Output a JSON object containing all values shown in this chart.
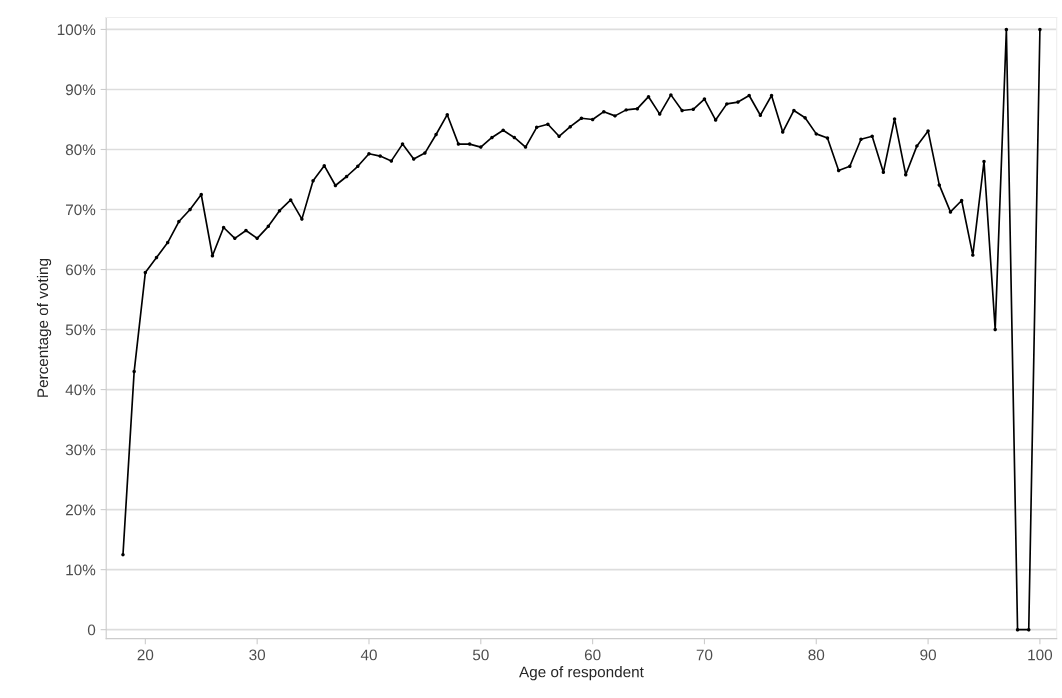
{
  "chart_data": {
    "type": "line",
    "xlabel": "Age of respondent",
    "ylabel": "Percentage of voting",
    "x": [
      18,
      19,
      20,
      21,
      22,
      23,
      24,
      25,
      26,
      27,
      28,
      29,
      30,
      31,
      32,
      33,
      34,
      35,
      36,
      37,
      38,
      39,
      40,
      41,
      42,
      43,
      44,
      45,
      46,
      47,
      48,
      49,
      50,
      51,
      52,
      53,
      54,
      55,
      56,
      57,
      58,
      59,
      60,
      61,
      62,
      63,
      64,
      65,
      66,
      67,
      68,
      69,
      70,
      71,
      72,
      73,
      74,
      75,
      76,
      77,
      78,
      79,
      80,
      81,
      82,
      83,
      84,
      85,
      86,
      87,
      88,
      89,
      90,
      91,
      92,
      93,
      94,
      95,
      96,
      97,
      98,
      99,
      100
    ],
    "series": [
      {
        "color": "#000000",
        "values": [
          12.5,
          43,
          59.5,
          62,
          64.5,
          68,
          70,
          72.5,
          62.3,
          67,
          65.2,
          66.5,
          65.2,
          67.2,
          69.8,
          71.6,
          68.4,
          74.8,
          77.3,
          74,
          75.5,
          77.2,
          79.3,
          78.9,
          78.1,
          80.9,
          78.4,
          79.4,
          82.5,
          85.8,
          80.9,
          80.9,
          80.4,
          82,
          83.2,
          82,
          80.4,
          83.7,
          84.2,
          82.2,
          83.8,
          85.2,
          85,
          86.3,
          85.6,
          86.6,
          86.8,
          88.8,
          85.9,
          89.1,
          86.5,
          86.7,
          88.4,
          84.9,
          87.6,
          87.9,
          89,
          85.7,
          89,
          82.9,
          86.5,
          85.3,
          82.6,
          81.9,
          76.5,
          77.2,
          81.7,
          82.2,
          76.2,
          85.1,
          75.8,
          80.6,
          83.1,
          74.1,
          69.6,
          71.5,
          62.4,
          78,
          50,
          100,
          0,
          0,
          100
        ]
      }
    ],
    "xlim": [
      16.5,
      101.5
    ],
    "xticks": [
      20,
      30,
      40,
      50,
      60,
      70,
      80,
      90,
      100
    ],
    "ylim": [
      -1.5,
      102
    ],
    "yticks": [
      0,
      {
        "value": 10,
        "label": "10%"
      },
      {
        "value": 20,
        "label": "20%"
      },
      {
        "value": 30,
        "label": "30%"
      },
      {
        "value": 40,
        "label": "40%"
      },
      {
        "value": 50,
        "label": "50%"
      },
      {
        "value": 60,
        "label": "60%"
      },
      {
        "value": 70,
        "label": "70%"
      },
      {
        "value": 80,
        "label": "80%"
      },
      {
        "value": 90,
        "label": "90%"
      },
      {
        "value": 100,
        "label": "100%"
      }
    ],
    "grid": "y",
    "marker": "circle",
    "line_style": "solid"
  }
}
